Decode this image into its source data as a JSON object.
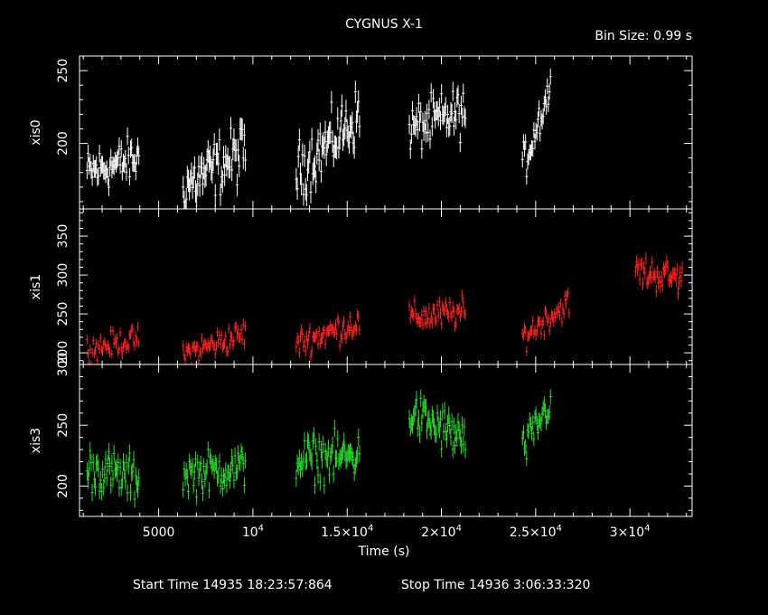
{
  "header": {
    "title": "CYGNUS X-1",
    "bin_size": "Bin Size: 0.99 s"
  },
  "footer": {
    "start_time": "Start Time 14935 18:23:57:864",
    "stop_time": "Stop Time 14936  3:06:33:320"
  },
  "xaxis": {
    "label": "Time (s)",
    "ticks": [
      {
        "value": 5000,
        "base": "5000",
        "exp": ""
      },
      {
        "value": 10000,
        "base": "10",
        "exp": "4"
      },
      {
        "value": 15000,
        "base": "1.5×10",
        "exp": "4"
      },
      {
        "value": 20000,
        "base": "2×10",
        "exp": "4"
      },
      {
        "value": 25000,
        "base": "2.5×10",
        "exp": "4"
      },
      {
        "value": 30000,
        "base": "3×10",
        "exp": "4"
      }
    ]
  },
  "colors": {
    "xis0": "#ffffff",
    "xis1": "#ff2020",
    "xis3": "#20e020",
    "frame": "#ffffff"
  },
  "chart_data": {
    "type": "scatter",
    "title": "CYGNUS X-1",
    "xlabel": "Time (s)",
    "xlim": [
      800,
      33300
    ],
    "panels": [
      {
        "name": "xis0",
        "ylabel": "xis0",
        "ylim": [
          155,
          260
        ],
        "yticks": [
          {
            "value": 200,
            "label": "200"
          },
          {
            "value": 250,
            "label": "250"
          }
        ],
        "color": "#ffffff",
        "segments": [
          {
            "t0": 1200,
            "t1": 4000,
            "y0": 180,
            "y1": 190,
            "spread": 11
          },
          {
            "t0": 6300,
            "t1": 9600,
            "y0": 170,
            "y1": 195,
            "spread": 14
          },
          {
            "t0": 12300,
            "t1": 15700,
            "y0": 180,
            "y1": 220,
            "spread": 14
          },
          {
            "t0": 18300,
            "t1": 21300,
            "y0": 210,
            "y1": 222,
            "spread": 12
          },
          {
            "t0": 24300,
            "t1": 25800,
            "y0": 183,
            "y1": 240,
            "spread": 10
          }
        ]
      },
      {
        "name": "xis1",
        "ylabel": "xis1",
        "ylim": [
          185,
          385
        ],
        "yticks": [
          {
            "value": 200,
            "label": "200"
          },
          {
            "value": 250,
            "label": "250"
          },
          {
            "value": 300,
            "label": "300"
          },
          {
            "value": 350,
            "label": "350"
          }
        ],
        "color": "#ff2020",
        "segments": [
          {
            "t0": 1200,
            "t1": 4000,
            "y0": 205,
            "y1": 218,
            "spread": 11
          },
          {
            "t0": 6300,
            "t1": 9600,
            "y0": 198,
            "y1": 225,
            "spread": 12
          },
          {
            "t0": 12300,
            "t1": 15700,
            "y0": 212,
            "y1": 240,
            "spread": 13
          },
          {
            "t0": 18300,
            "t1": 21300,
            "y0": 245,
            "y1": 252,
            "spread": 13
          },
          {
            "t0": 24300,
            "t1": 26800,
            "y0": 220,
            "y1": 265,
            "spread": 12
          },
          {
            "t0": 30300,
            "t1": 32800,
            "y0": 305,
            "y1": 295,
            "spread": 15
          }
        ]
      },
      {
        "name": "xis3",
        "ylabel": "xis3",
        "ylim": [
          175,
          300
        ],
        "yticks": [
          {
            "value": 200,
            "label": "200"
          },
          {
            "value": 250,
            "label": "250"
          },
          {
            "value": 300,
            "label": "300"
          }
        ],
        "color": "#20e020",
        "segments": [
          {
            "t0": 1200,
            "t1": 4000,
            "y0": 215,
            "y1": 205,
            "spread": 13
          },
          {
            "t0": 6300,
            "t1": 9600,
            "y0": 210,
            "y1": 215,
            "spread": 12
          },
          {
            "t0": 12300,
            "t1": 15700,
            "y0": 222,
            "y1": 225,
            "spread": 13
          },
          {
            "t0": 18300,
            "t1": 21300,
            "y0": 260,
            "y1": 238,
            "spread": 13
          },
          {
            "t0": 24300,
            "t1": 25800,
            "y0": 228,
            "y1": 270,
            "spread": 11
          }
        ]
      }
    ]
  }
}
